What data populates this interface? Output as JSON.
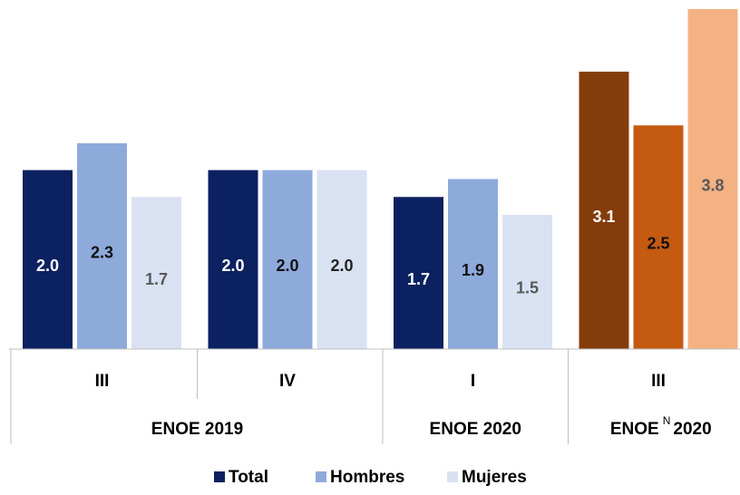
{
  "chart_data": {
    "type": "bar",
    "categories": [
      "III",
      "IV",
      "I",
      "III"
    ],
    "groups": [
      {
        "label": "ENOE 2019",
        "count": 2
      },
      {
        "label": "ENOE 2020",
        "count": 1
      },
      {
        "label": "ENOE",
        "superscript": "N",
        "label_end": "2020",
        "count": 1
      }
    ],
    "series": [
      {
        "name": "Total",
        "color": "#0b2160",
        "point_colors": [
          "#0b2160",
          "#0b2160",
          "#0b2160",
          "#843c0c"
        ],
        "label_colors": [
          "#ffffff",
          "#ffffff",
          "#ffffff",
          "#ffffff"
        ],
        "values": [
          2.0,
          2.0,
          1.7,
          3.1
        ],
        "value_labels": [
          "2.0",
          "2.0",
          "1.7",
          "3.1"
        ]
      },
      {
        "name": "Hombres",
        "color": "#8eaadb",
        "point_colors": [
          "#8eaadb",
          "#8eaadb",
          "#8eaadb",
          "#c55a11"
        ],
        "label_colors": [
          "#111111",
          "#111111",
          "#111111",
          "#111111"
        ],
        "values": [
          2.3,
          2.0,
          1.9,
          2.5
        ],
        "value_labels": [
          "2.3",
          "2.0",
          "1.9",
          "2.5"
        ]
      },
      {
        "name": "Mujeres",
        "color": "#d9e2f3",
        "point_colors": [
          "#d9e2f3",
          "#d9e2f3",
          "#d9e2f3",
          "#f4b183"
        ],
        "label_colors": [
          "#595959",
          "#222222",
          "#595959",
          "#595959"
        ],
        "values": [
          1.7,
          2.0,
          1.5,
          3.8
        ],
        "value_labels": [
          "1.7",
          "2.0",
          "1.5",
          "3.8"
        ]
      }
    ],
    "ylim": [
      0,
      3.8
    ],
    "grid": false,
    "legend": "bottom"
  }
}
